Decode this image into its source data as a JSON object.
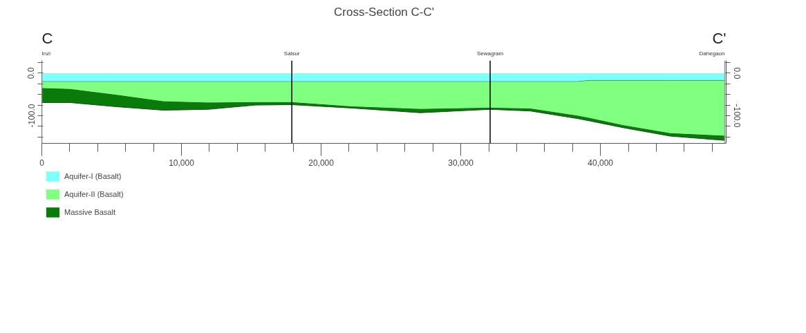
{
  "chart_data": {
    "type": "area",
    "title": "Cross-Section C-C'",
    "stacked": true,
    "annotations": [
      "C",
      "C'"
    ],
    "x": [
      0,
      2000,
      5400,
      8700,
      11900,
      15300,
      17900,
      22200,
      27100,
      32100,
      35000,
      38400,
      39200,
      41600,
      45000,
      48900
    ],
    "series": [
      {
        "name": "Aquifer-I (Basalt)",
        "color": "#80ffff",
        "values": [
          -20,
          -20,
          -20,
          -20,
          -20,
          -20,
          -20,
          -20,
          -20,
          -20,
          -20,
          -20,
          -17,
          -17,
          -17,
          -17
        ]
      },
      {
        "name": "Aquifer-II (Basalt)",
        "color": "#80ff80",
        "values": [
          -16,
          -18,
          -32,
          -47,
          -50,
          -49,
          -49,
          -59,
          -65,
          -62,
          -64,
          -81,
          -89,
          -106,
          -125,
          -131
        ]
      },
      {
        "name": "Massive Basalt",
        "color": "#0a7a0a",
        "values": [
          -33,
          -31,
          -27,
          -20,
          -15,
          -6,
          -5,
          -3,
          -8,
          -3,
          -5,
          -6,
          -6,
          -5,
          -6,
          -10
        ]
      }
    ],
    "xlim": [
      0,
      49000
    ],
    "xticks": [
      {
        "value": 0,
        "label": "0"
      },
      {
        "value": 2000,
        "label": null
      },
      {
        "value": 4000,
        "label": null
      },
      {
        "value": 6000,
        "label": null
      },
      {
        "value": 8000,
        "label": null
      },
      {
        "value": 10000,
        "label": "10,000"
      },
      {
        "value": 12000,
        "label": null
      },
      {
        "value": 14000,
        "label": null
      },
      {
        "value": 16000,
        "label": null
      },
      {
        "value": 18000,
        "label": null
      },
      {
        "value": 20000,
        "label": "20,000"
      },
      {
        "value": 22000,
        "label": null
      },
      {
        "value": 24000,
        "label": null
      },
      {
        "value": 26000,
        "label": null
      },
      {
        "value": 28000,
        "label": null
      },
      {
        "value": 30000,
        "label": "30,000"
      },
      {
        "value": 32000,
        "label": null
      },
      {
        "value": 34000,
        "label": null
      },
      {
        "value": 36000,
        "label": null
      },
      {
        "value": 38000,
        "label": null
      },
      {
        "value": 40000,
        "label": "40,000"
      },
      {
        "value": 42000,
        "label": null
      },
      {
        "value": 44000,
        "label": null
      },
      {
        "value": 46000,
        "label": null
      },
      {
        "value": 48000,
        "label": null
      }
    ],
    "ylim": [
      -165,
      30
    ],
    "yticks": [
      {
        "value": 25,
        "label": null
      },
      {
        "value": 0,
        "label": "0.0"
      },
      {
        "value": -25,
        "label": null
      },
      {
        "value": -50,
        "label": null
      },
      {
        "value": -75,
        "label": null
      },
      {
        "value": -100,
        "label": "-100.0"
      },
      {
        "value": -125,
        "label": null
      },
      {
        "value": -150,
        "label": null
      }
    ],
    "y2lim": [
      -165,
      30
    ],
    "y2ticks": [
      {
        "value": 25,
        "label": null
      },
      {
        "value": 0,
        "label": "0.0"
      },
      {
        "value": -25,
        "label": null
      },
      {
        "value": -50,
        "label": null
      },
      {
        "value": -75,
        "label": null
      },
      {
        "value": -100,
        "label": "-100.0"
      },
      {
        "value": -125,
        "label": null
      },
      {
        "value": -150,
        "label": null
      }
    ],
    "ref_lines": [
      {
        "axis": "x",
        "value": 0,
        "label": "Inzi",
        "color": "#999999"
      },
      {
        "axis": "x",
        "value": 17900,
        "label": "Salsur",
        "color": "#000000"
      },
      {
        "axis": "x",
        "value": 32100,
        "label": "Sewagram",
        "color": "#000000"
      },
      {
        "axis": "x",
        "value": 48900,
        "label": "Dahegaon",
        "color": "#999999"
      }
    ],
    "grid": false,
    "legend": "bottom left"
  }
}
